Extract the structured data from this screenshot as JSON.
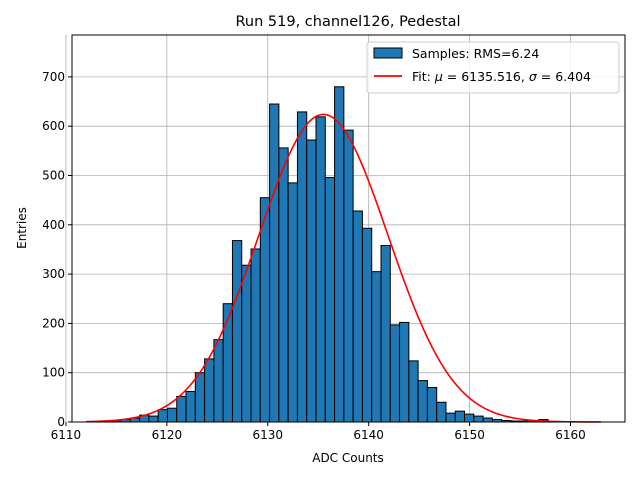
{
  "chart_data": {
    "type": "histogram",
    "title": "Run 519, channel126, Pedestal",
    "xlabel": "ADC Counts",
    "ylabel": "Entries",
    "xlim": [
      6110.6,
      6165.4
    ],
    "ylim": [
      0,
      785
    ],
    "xticks": [
      6110,
      6120,
      6130,
      6140,
      6150,
      6160
    ],
    "yticks": [
      0,
      100,
      200,
      300,
      400,
      500,
      600,
      700
    ],
    "grid": true,
    "legend_position": "top-right",
    "colors": {
      "bars": "#1f77b4",
      "bar_edge": "#000000",
      "fit": "#ff0000",
      "grid": "#b0b0b0"
    },
    "histogram": {
      "name": "Samples: RMS=6.24",
      "bin_width": 0.92,
      "bin_starts": [
        6112.7,
        6113.62,
        6114.54,
        6115.46,
        6116.38,
        6117.3,
        6118.22,
        6119.14,
        6120.06,
        6120.98,
        6121.9,
        6122.82,
        6123.74,
        6124.66,
        6125.58,
        6126.5,
        6127.42,
        6128.34,
        6129.26,
        6130.18,
        6131.1,
        6132.02,
        6132.94,
        6133.86,
        6134.78,
        6135.7,
        6136.62,
        6137.54,
        6138.46,
        6139.38,
        6140.3,
        6141.22,
        6142.14,
        6143.06,
        6143.98,
        6144.9,
        6145.82,
        6146.74,
        6147.66,
        6148.58,
        6149.5,
        6150.42,
        6151.34,
        6152.26,
        6153.18,
        6154.1,
        6155.02,
        6155.94,
        6156.86
      ],
      "counts": [
        1,
        1,
        2,
        5,
        8,
        14,
        12,
        25,
        28,
        52,
        62,
        100,
        128,
        167,
        240,
        368,
        318,
        351,
        455,
        645,
        556,
        485,
        629,
        572,
        619,
        496,
        680,
        592,
        428,
        393,
        305,
        358,
        197,
        202,
        124,
        84,
        70,
        40,
        18,
        22,
        16,
        12,
        8,
        5,
        3,
        2,
        2,
        1,
        5
      ]
    },
    "fit": {
      "name_prefix": "Fit: ",
      "mu_value": "6135.516",
      "sigma_value": "6.404",
      "mu": 6135.516,
      "sigma": 6.404,
      "amplitude": 624,
      "x_range": [
        6112,
        6163
      ]
    }
  }
}
